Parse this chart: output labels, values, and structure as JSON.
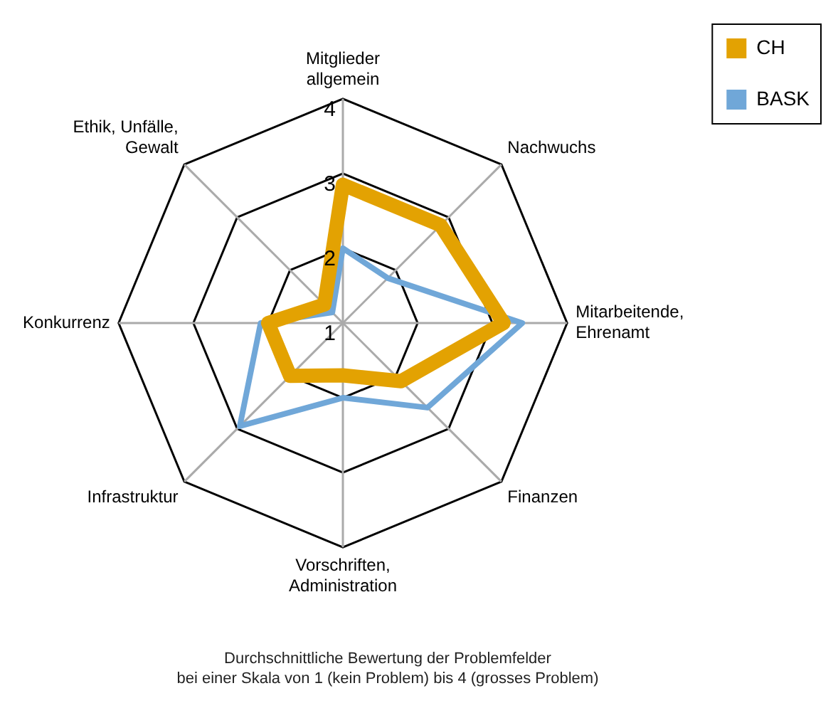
{
  "chart_data": {
    "type": "radar",
    "categories": [
      "Mitglieder\nallgemein",
      "Nachwuchs",
      "Mitarbeitende,\nEhrenamt",
      "Finanzen",
      "Vorschriften,\nAdministration",
      "Infrastruktur",
      "Konkurrenz",
      "Ethik, Unfälle,\nGewalt"
    ],
    "series": [
      {
        "name": "CH",
        "color": "#e3a202",
        "values": [
          2.85,
          2.85,
          3.15,
          2.1,
          1.7,
          2.0,
          2.0,
          1.35
        ]
      },
      {
        "name": "BASK",
        "color": "#70a7d8",
        "values": [
          2.0,
          1.85,
          3.4,
          2.6,
          2.0,
          2.95,
          2.1,
          1.2
        ]
      }
    ],
    "ylim": [
      1,
      4
    ],
    "yticks": [
      1,
      2,
      3,
      4
    ],
    "grid": true,
    "legend": "top right",
    "marker": "none",
    "line_style": "solid",
    "annotations": [
      "Durchschnittliche Bewertung der Problemfelder",
      "bei einer Skala von 1 (kein Problem) bis 4 (grosses Problem)"
    ]
  }
}
